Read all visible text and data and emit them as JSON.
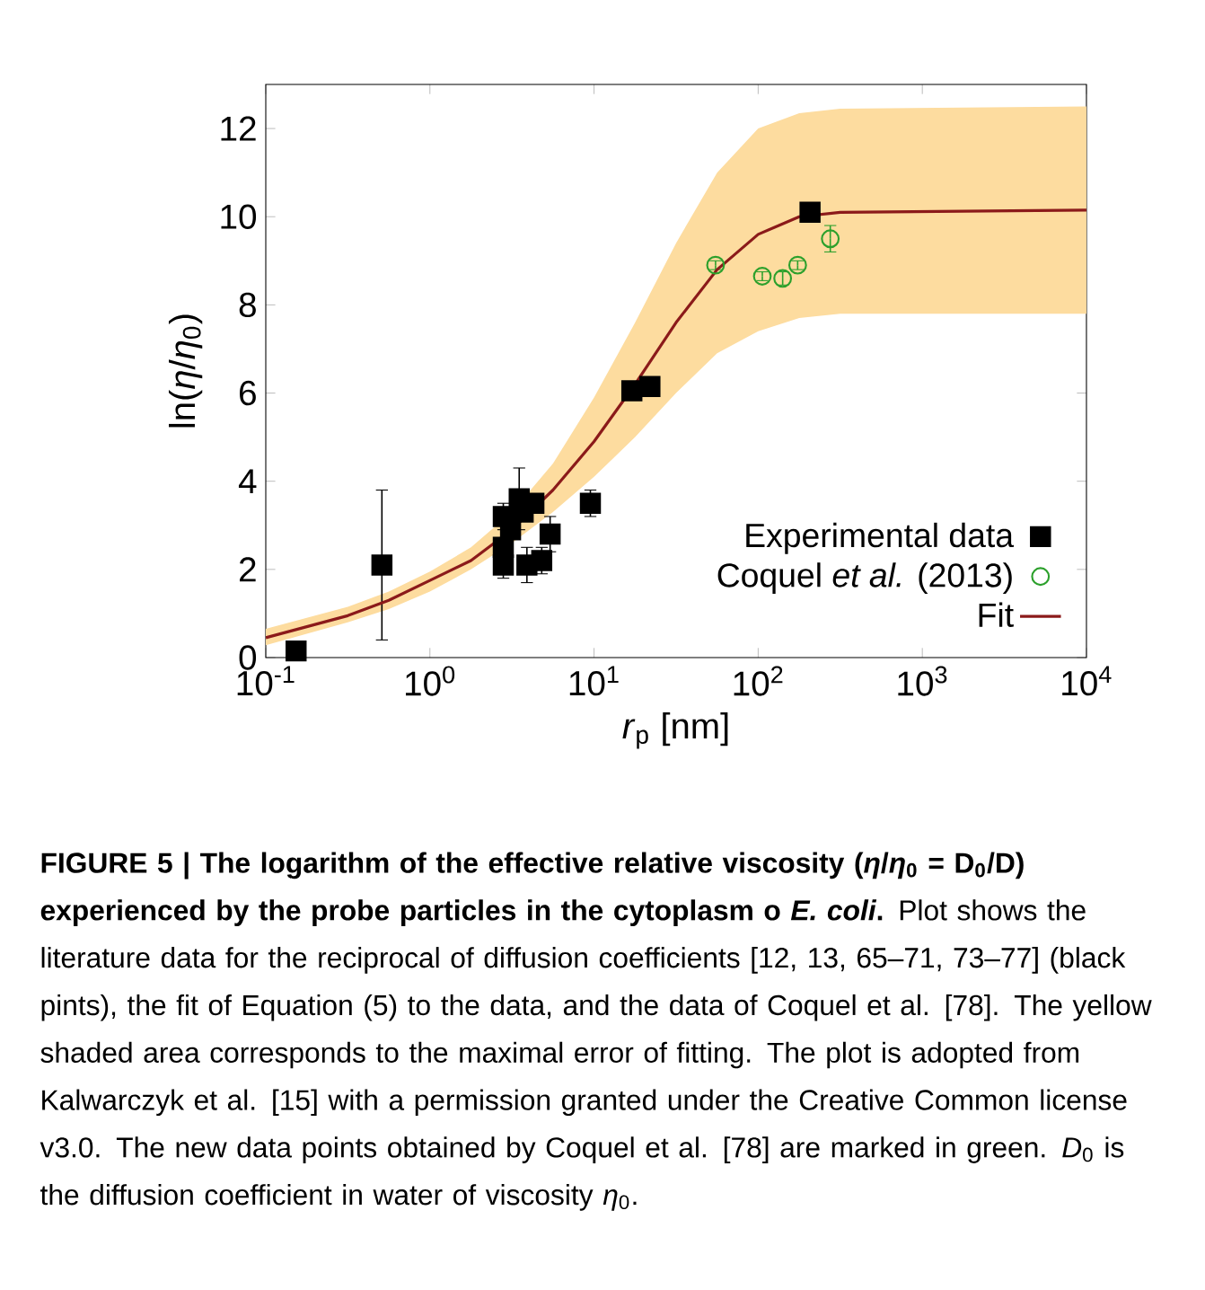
{
  "chart_data": {
    "type": "scatter",
    "xlabel": "*r*$_{p}$ [nm]",
    "ylabel": "ln(*η*/*η*$_{0}$)",
    "log": "x",
    "xlim": [
      0.1,
      10000
    ],
    "ylim": [
      0,
      13
    ],
    "xticks": [
      {
        "value": 0.1,
        "label": "10$^{-1}$"
      },
      {
        "value": 1,
        "label": "10$^{0}$"
      },
      {
        "value": 10,
        "label": "10$^{1}$"
      },
      {
        "value": 100,
        "label": "10$^{2}$"
      },
      {
        "value": 1000,
        "label": "10$^{3}$"
      },
      {
        "value": 10000,
        "label": "10$^{4}$"
      }
    ],
    "yticks": [
      0,
      2,
      4,
      6,
      8,
      10,
      12
    ],
    "legend": "bottom right",
    "series": [
      {
        "name": "Experimental data",
        "marker": "square",
        "color": "#000000",
        "x": [
          0.153,
          0.51,
          2.8,
          2.8,
          2.8,
          3.1,
          3.5,
          3.7,
          3.9,
          4.3,
          4.8,
          5.4,
          9.5,
          17,
          21.9,
          207
        ],
        "values": [
          0.15,
          2.1,
          2.1,
          2.5,
          3.2,
          2.9,
          3.6,
          3.3,
          2.1,
          3.5,
          2.2,
          2.8,
          3.5,
          6.05,
          6.15,
          10.1
        ],
        "errors": [
          null,
          1.7,
          0.3,
          null,
          0.3,
          null,
          0.7,
          null,
          0.4,
          null,
          0.3,
          0.4,
          0.3,
          0.2,
          0.1,
          null
        ]
      },
      {
        "name": "Coquel *et al.* (2013)",
        "marker": "circle",
        "color": "#2ca02c",
        "x": [
          55,
          106,
          141,
          174,
          275
        ],
        "values": [
          8.9,
          8.65,
          8.6,
          8.9,
          9.5
        ],
        "errors": [
          0.1,
          0.1,
          0.15,
          0.1,
          0.3
        ]
      },
      {
        "name": "Fit",
        "type": "line",
        "marker": "none",
        "color": "#8b1a1a",
        "x": [
          0.1,
          0.316,
          0.562,
          1,
          1.78,
          3.16,
          5.62,
          10,
          17.8,
          31.6,
          56.2,
          100,
          178,
          316,
          10000
        ],
        "values": [
          0.45,
          0.95,
          1.3,
          1.75,
          2.2,
          2.9,
          3.8,
          4.9,
          6.2,
          7.6,
          8.8,
          9.6,
          10.0,
          10.1,
          10.15
        ],
        "lower": [
          0.28,
          0.8,
          1.1,
          1.5,
          2.0,
          2.6,
          3.3,
          4.1,
          5.0,
          6.0,
          6.9,
          7.4,
          7.7,
          7.8,
          7.8
        ],
        "upper": [
          0.65,
          1.15,
          1.5,
          1.95,
          2.5,
          3.3,
          4.4,
          5.9,
          7.6,
          9.4,
          11.0,
          12.0,
          12.35,
          12.45,
          12.5
        ]
      }
    ],
    "annotations": [
      "FIGURE 5 | The logarithm of the effective relative viscosity (*η*/*η*$_{0}$ = D$_{0}$/D) experienced by the probe particles in the cytoplasm o *E. coli*.",
      "Plot shows the literature data for the reciprocal of diffusion coefficients [12, 13, 65–71, 73–77] (black pints), the fit of Equation (5) to the data, and the data of Coquel et al. [78]. The yellow shaded area corresponds to the maximal error of fitting. The plot is adopted from Kalwarczyk et al. [15] with a permission granted under the Creative Common license v3.0. The new data points obtained by Coquel et al. [78] are marked in green. *D*$_{0}$ is the diffusion coefficient in water of viscosity *η*$_{0}$."
    ]
  }
}
